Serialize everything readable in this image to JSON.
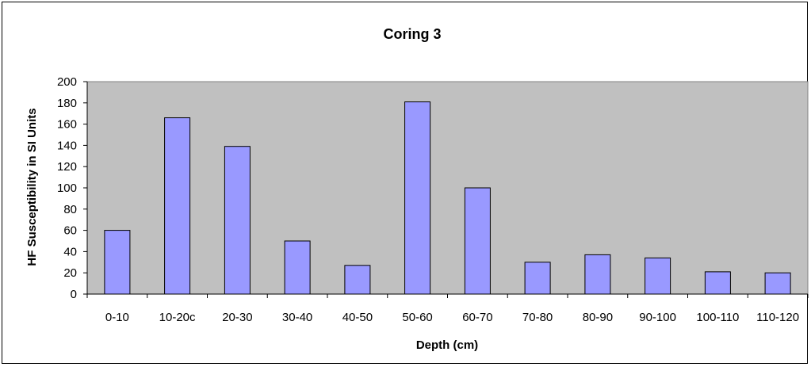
{
  "chart_data": {
    "type": "bar",
    "title": "Coring 3",
    "xlabel": "Depth (cm)",
    "ylabel": "HF Susceptibility in SI Units",
    "categories": [
      "0-10",
      "10-20c",
      "20-30",
      "30-40",
      "40-50",
      "50-60",
      "60-70",
      "70-80",
      "80-90",
      "90-100",
      "100-110",
      "110-120"
    ],
    "values": [
      60,
      166,
      139,
      50,
      27,
      181,
      100,
      30,
      37,
      34,
      21,
      20
    ],
    "ylim": [
      0,
      200
    ],
    "yticks": [
      0,
      20,
      40,
      60,
      80,
      100,
      120,
      140,
      160,
      180,
      200
    ],
    "grid": false,
    "legend": "none",
    "colors": {
      "bar_fill": "#9999ff",
      "bar_stroke": "#000000",
      "plot_background": "#c0c0c0"
    }
  }
}
